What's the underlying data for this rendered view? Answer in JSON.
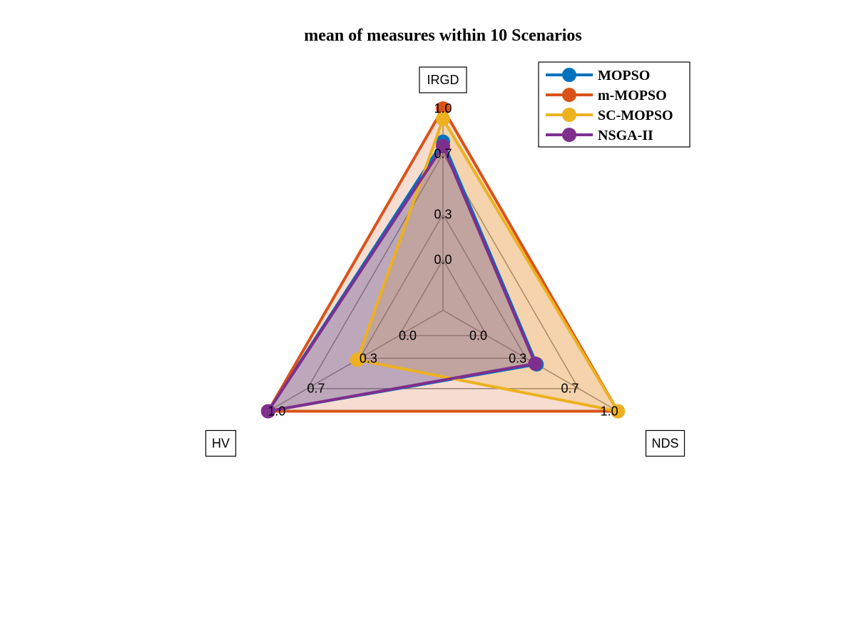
{
  "chart_data": {
    "type": "radar",
    "title": "mean of measures within 10 Scenarios",
    "axes": [
      "IRGD",
      "NDS",
      "HV"
    ],
    "axis_tick_labels": [
      "0.0",
      "0.3",
      "0.7",
      "1.0"
    ],
    "range": [
      0,
      1
    ],
    "legend_position": "top-right",
    "series": [
      {
        "name": "MOPSO",
        "color": "#0072BD",
        "values": [
          0.78,
          0.38,
          1.0
        ]
      },
      {
        "name": "m-MOPSO",
        "color": "#D95319",
        "values": [
          1.0,
          1.0,
          1.0
        ]
      },
      {
        "name": "SC-MOPSO",
        "color": "#EDB120",
        "values": [
          0.93,
          1.0,
          0.32
        ]
      },
      {
        "name": "NSGA-II",
        "color": "#7E2F8E",
        "values": [
          0.75,
          0.37,
          1.0
        ]
      }
    ]
  }
}
